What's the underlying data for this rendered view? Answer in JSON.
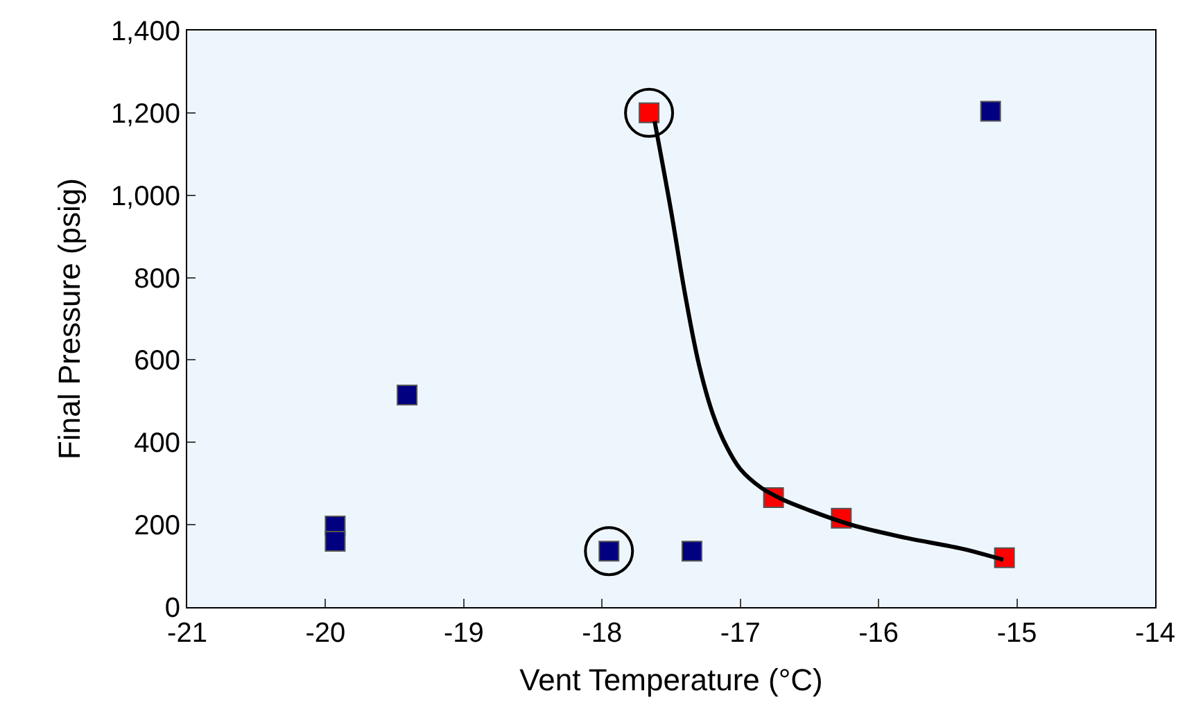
{
  "chart_data": {
    "type": "scatter",
    "xlabel": "Vent Temperature (°C)",
    "ylabel": "Final Pressure (psig)",
    "xlim": [
      -21,
      -14
    ],
    "xticks": [
      -21,
      -20,
      -19,
      -18,
      -17,
      -16,
      -15,
      -14
    ],
    "ylim": [
      0,
      1400
    ],
    "yticks": [
      0,
      200,
      400,
      600,
      800,
      {
        "value": 1000,
        "label": "1,000"
      },
      {
        "value": 1200,
        "label": "1,200"
      },
      {
        "value": 1400,
        "label": "1,400"
      }
    ],
    "marker": "square",
    "series": [
      {
        "color": "#000080",
        "x": [
          -19.93,
          -19.93,
          -19.41,
          -17.95,
          -17.35,
          -15.19
        ],
        "values": [
          197,
          160,
          515,
          136,
          136,
          1204
        ]
      },
      {
        "color": "#ff0000",
        "x": [
          -17.66,
          -16.76,
          -16.27,
          -15.09
        ],
        "values": [
          1200,
          266,
          216,
          120
        ]
      },
      {
        "type": "line",
        "color": "#000000",
        "marker": "none",
        "x": [
          -17.62,
          -17.5,
          -17.4,
          -17.3,
          -17.2,
          -17.1,
          -17.0,
          -16.85,
          -16.7,
          -16.5,
          -16.2,
          -15.8,
          -15.4,
          -15.1
        ],
        "values": [
          1180,
          960,
          760,
          590,
          470,
          390,
          335,
          290,
          262,
          235,
          200,
          168,
          142,
          115
        ]
      },
      {
        "type": "scatter",
        "color": "#000000",
        "marker": "circle-open",
        "x": [
          -17.66,
          -17.95
        ],
        "values": [
          1200,
          136
        ]
      }
    ]
  }
}
